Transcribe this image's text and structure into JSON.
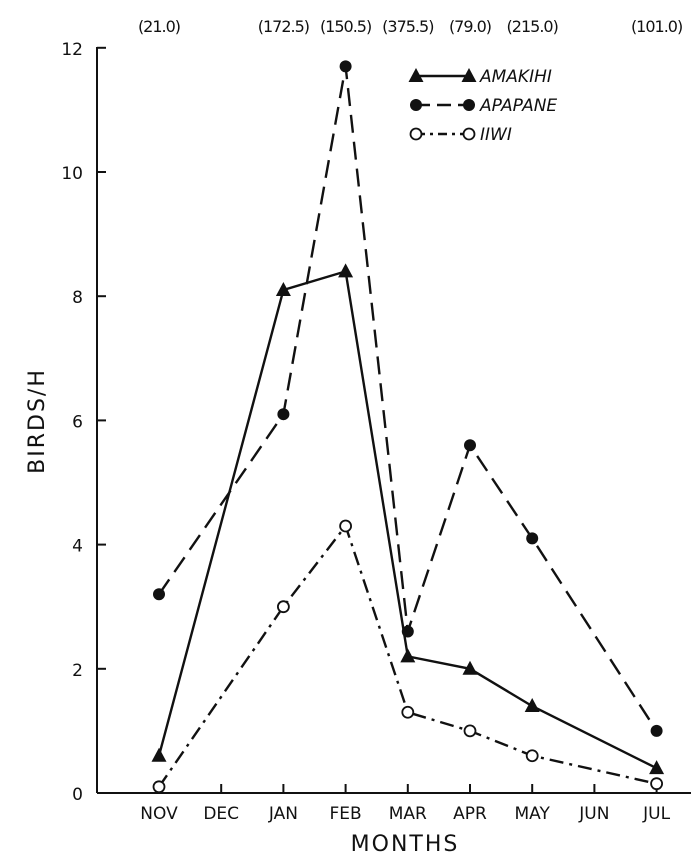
{
  "chart_data": {
    "type": "line",
    "title": "",
    "xlabel": "MONTHS",
    "ylabel": "BIRDS/H",
    "categories": [
      "NOV",
      "DEC",
      "JAN",
      "FEB",
      "MAR",
      "APR",
      "MAY",
      "JUN",
      "JUL"
    ],
    "ylim": [
      0,
      12
    ],
    "yticks": [
      0,
      2,
      4,
      6,
      8,
      10,
      12
    ],
    "top_annotations": [
      {
        "category": "NOV",
        "text": "(21.0)"
      },
      {
        "category": "JAN",
        "text": "(172.5)"
      },
      {
        "category": "FEB",
        "text": "(150.5)"
      },
      {
        "category": "MAR",
        "text": "(375.5)"
      },
      {
        "category": "APR",
        "text": "(79.0)"
      },
      {
        "category": "MAY",
        "text": "(215.0)"
      },
      {
        "category": "JUL",
        "text": "(101.0)"
      }
    ],
    "series": [
      {
        "name": "AMAKIHI",
        "marker": "filled-triangle",
        "line_style": "solid",
        "values": [
          0.6,
          null,
          8.1,
          8.4,
          2.2,
          2.0,
          1.4,
          null,
          0.4
        ]
      },
      {
        "name": "APAPANE",
        "marker": "filled-circle",
        "line_style": "dashed",
        "values": [
          3.2,
          null,
          6.1,
          11.7,
          2.6,
          5.6,
          4.1,
          null,
          1.0
        ]
      },
      {
        "name": "IIWI",
        "marker": "open-circle",
        "line_style": "dash-dot",
        "values": [
          0.1,
          null,
          3.0,
          4.3,
          1.3,
          1.0,
          0.6,
          null,
          0.15
        ]
      }
    ],
    "grid": false,
    "legend_position": "top-right"
  }
}
